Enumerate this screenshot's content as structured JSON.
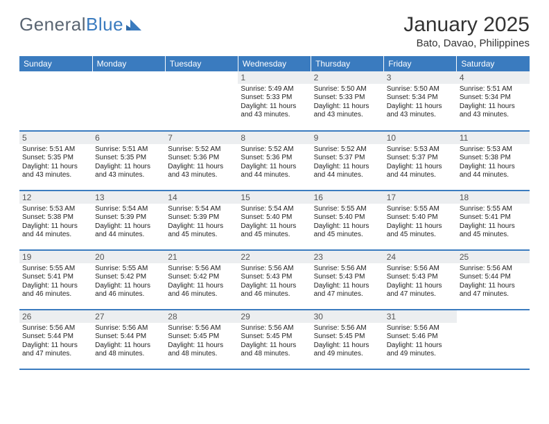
{
  "logo": {
    "part1": "General",
    "part2": "Blue"
  },
  "title": "January 2025",
  "location": "Bato, Davao, Philippines",
  "colors": {
    "header_bg": "#3a7bbf",
    "header_text": "#ffffff",
    "daynum_bg": "#eceef0",
    "daynum_text": "#555555",
    "row_border": "#3a7bbf",
    "page_bg": "#ffffff",
    "text": "#1a1a1a",
    "logo_general": "#5a6572",
    "logo_blue": "#3a7bbf"
  },
  "weekdays": [
    "Sunday",
    "Monday",
    "Tuesday",
    "Wednesday",
    "Thursday",
    "Friday",
    "Saturday"
  ],
  "weeks": [
    [
      {
        "empty": true
      },
      {
        "empty": true
      },
      {
        "empty": true
      },
      {
        "day": "1",
        "sunrise": "Sunrise: 5:49 AM",
        "sunset": "Sunset: 5:33 PM",
        "daylight1": "Daylight: 11 hours",
        "daylight2": "and 43 minutes."
      },
      {
        "day": "2",
        "sunrise": "Sunrise: 5:50 AM",
        "sunset": "Sunset: 5:33 PM",
        "daylight1": "Daylight: 11 hours",
        "daylight2": "and 43 minutes."
      },
      {
        "day": "3",
        "sunrise": "Sunrise: 5:50 AM",
        "sunset": "Sunset: 5:34 PM",
        "daylight1": "Daylight: 11 hours",
        "daylight2": "and 43 minutes."
      },
      {
        "day": "4",
        "sunrise": "Sunrise: 5:51 AM",
        "sunset": "Sunset: 5:34 PM",
        "daylight1": "Daylight: 11 hours",
        "daylight2": "and 43 minutes."
      }
    ],
    [
      {
        "day": "5",
        "sunrise": "Sunrise: 5:51 AM",
        "sunset": "Sunset: 5:35 PM",
        "daylight1": "Daylight: 11 hours",
        "daylight2": "and 43 minutes."
      },
      {
        "day": "6",
        "sunrise": "Sunrise: 5:51 AM",
        "sunset": "Sunset: 5:35 PM",
        "daylight1": "Daylight: 11 hours",
        "daylight2": "and 43 minutes."
      },
      {
        "day": "7",
        "sunrise": "Sunrise: 5:52 AM",
        "sunset": "Sunset: 5:36 PM",
        "daylight1": "Daylight: 11 hours",
        "daylight2": "and 43 minutes."
      },
      {
        "day": "8",
        "sunrise": "Sunrise: 5:52 AM",
        "sunset": "Sunset: 5:36 PM",
        "daylight1": "Daylight: 11 hours",
        "daylight2": "and 44 minutes."
      },
      {
        "day": "9",
        "sunrise": "Sunrise: 5:52 AM",
        "sunset": "Sunset: 5:37 PM",
        "daylight1": "Daylight: 11 hours",
        "daylight2": "and 44 minutes."
      },
      {
        "day": "10",
        "sunrise": "Sunrise: 5:53 AM",
        "sunset": "Sunset: 5:37 PM",
        "daylight1": "Daylight: 11 hours",
        "daylight2": "and 44 minutes."
      },
      {
        "day": "11",
        "sunrise": "Sunrise: 5:53 AM",
        "sunset": "Sunset: 5:38 PM",
        "daylight1": "Daylight: 11 hours",
        "daylight2": "and 44 minutes."
      }
    ],
    [
      {
        "day": "12",
        "sunrise": "Sunrise: 5:53 AM",
        "sunset": "Sunset: 5:38 PM",
        "daylight1": "Daylight: 11 hours",
        "daylight2": "and 44 minutes."
      },
      {
        "day": "13",
        "sunrise": "Sunrise: 5:54 AM",
        "sunset": "Sunset: 5:39 PM",
        "daylight1": "Daylight: 11 hours",
        "daylight2": "and 44 minutes."
      },
      {
        "day": "14",
        "sunrise": "Sunrise: 5:54 AM",
        "sunset": "Sunset: 5:39 PM",
        "daylight1": "Daylight: 11 hours",
        "daylight2": "and 45 minutes."
      },
      {
        "day": "15",
        "sunrise": "Sunrise: 5:54 AM",
        "sunset": "Sunset: 5:40 PM",
        "daylight1": "Daylight: 11 hours",
        "daylight2": "and 45 minutes."
      },
      {
        "day": "16",
        "sunrise": "Sunrise: 5:55 AM",
        "sunset": "Sunset: 5:40 PM",
        "daylight1": "Daylight: 11 hours",
        "daylight2": "and 45 minutes."
      },
      {
        "day": "17",
        "sunrise": "Sunrise: 5:55 AM",
        "sunset": "Sunset: 5:40 PM",
        "daylight1": "Daylight: 11 hours",
        "daylight2": "and 45 minutes."
      },
      {
        "day": "18",
        "sunrise": "Sunrise: 5:55 AM",
        "sunset": "Sunset: 5:41 PM",
        "daylight1": "Daylight: 11 hours",
        "daylight2": "and 45 minutes."
      }
    ],
    [
      {
        "day": "19",
        "sunrise": "Sunrise: 5:55 AM",
        "sunset": "Sunset: 5:41 PM",
        "daylight1": "Daylight: 11 hours",
        "daylight2": "and 46 minutes."
      },
      {
        "day": "20",
        "sunrise": "Sunrise: 5:55 AM",
        "sunset": "Sunset: 5:42 PM",
        "daylight1": "Daylight: 11 hours",
        "daylight2": "and 46 minutes."
      },
      {
        "day": "21",
        "sunrise": "Sunrise: 5:56 AM",
        "sunset": "Sunset: 5:42 PM",
        "daylight1": "Daylight: 11 hours",
        "daylight2": "and 46 minutes."
      },
      {
        "day": "22",
        "sunrise": "Sunrise: 5:56 AM",
        "sunset": "Sunset: 5:43 PM",
        "daylight1": "Daylight: 11 hours",
        "daylight2": "and 46 minutes."
      },
      {
        "day": "23",
        "sunrise": "Sunrise: 5:56 AM",
        "sunset": "Sunset: 5:43 PM",
        "daylight1": "Daylight: 11 hours",
        "daylight2": "and 47 minutes."
      },
      {
        "day": "24",
        "sunrise": "Sunrise: 5:56 AM",
        "sunset": "Sunset: 5:43 PM",
        "daylight1": "Daylight: 11 hours",
        "daylight2": "and 47 minutes."
      },
      {
        "day": "25",
        "sunrise": "Sunrise: 5:56 AM",
        "sunset": "Sunset: 5:44 PM",
        "daylight1": "Daylight: 11 hours",
        "daylight2": "and 47 minutes."
      }
    ],
    [
      {
        "day": "26",
        "sunrise": "Sunrise: 5:56 AM",
        "sunset": "Sunset: 5:44 PM",
        "daylight1": "Daylight: 11 hours",
        "daylight2": "and 47 minutes."
      },
      {
        "day": "27",
        "sunrise": "Sunrise: 5:56 AM",
        "sunset": "Sunset: 5:44 PM",
        "daylight1": "Daylight: 11 hours",
        "daylight2": "and 48 minutes."
      },
      {
        "day": "28",
        "sunrise": "Sunrise: 5:56 AM",
        "sunset": "Sunset: 5:45 PM",
        "daylight1": "Daylight: 11 hours",
        "daylight2": "and 48 minutes."
      },
      {
        "day": "29",
        "sunrise": "Sunrise: 5:56 AM",
        "sunset": "Sunset: 5:45 PM",
        "daylight1": "Daylight: 11 hours",
        "daylight2": "and 48 minutes."
      },
      {
        "day": "30",
        "sunrise": "Sunrise: 5:56 AM",
        "sunset": "Sunset: 5:45 PM",
        "daylight1": "Daylight: 11 hours",
        "daylight2": "and 49 minutes."
      },
      {
        "day": "31",
        "sunrise": "Sunrise: 5:56 AM",
        "sunset": "Sunset: 5:46 PM",
        "daylight1": "Daylight: 11 hours",
        "daylight2": "and 49 minutes."
      },
      {
        "empty": true
      }
    ]
  ]
}
